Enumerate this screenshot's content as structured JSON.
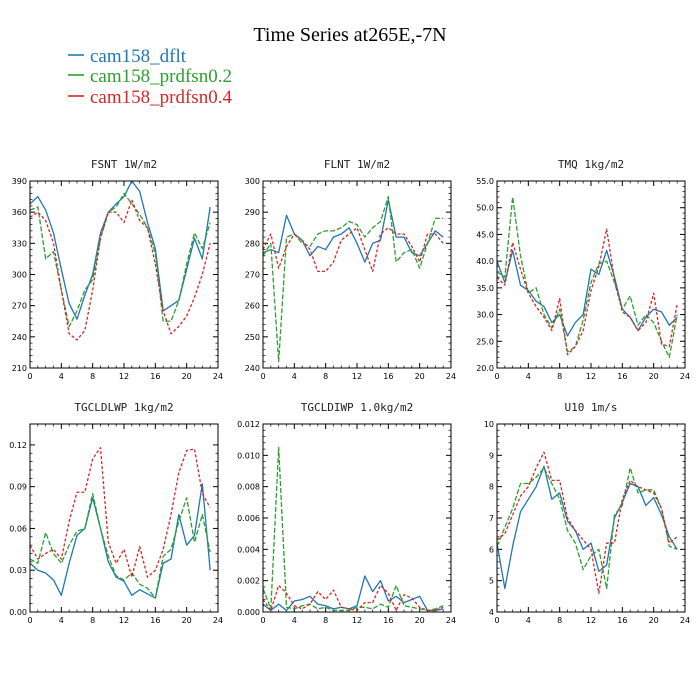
{
  "title": "Time Series at265E,-7N",
  "legend": [
    {
      "label": "cam158_dflt",
      "color": "#1f77b4"
    },
    {
      "label": "cam158_prdfsn0.2",
      "color": "#2ca02c"
    },
    {
      "label": "cam158_prdfsn0.4",
      "color": "#d62728"
    }
  ],
  "chart_data": [
    {
      "type": "line",
      "title": "FSNT  1W/m2",
      "xlim": [
        0,
        24
      ],
      "xticks": [
        "0",
        "4",
        "8",
        "12",
        "16",
        "20",
        "24"
      ],
      "ylim": [
        210,
        390
      ],
      "yticks": [
        "210",
        "240",
        "270",
        "300",
        "330",
        "360",
        "390"
      ],
      "x": [
        0,
        1,
        2,
        3,
        4,
        5,
        6,
        7,
        8,
        9,
        10,
        11,
        12,
        13,
        14,
        15,
        16,
        17,
        18,
        19,
        20,
        21,
        22,
        23
      ],
      "series": [
        {
          "name": "cam158_dflt",
          "color": "#1f77b4",
          "dash": "",
          "values": [
            368,
            375,
            362,
            340,
            305,
            272,
            257,
            280,
            300,
            340,
            360,
            368,
            375,
            390,
            380,
            350,
            325,
            265,
            270,
            275,
            305,
            335,
            315,
            365
          ]
        },
        {
          "name": "cam158_prdfsn0.2",
          "color": "#2ca02c",
          "dash": "5,2",
          "values": [
            362,
            365,
            315,
            322,
            285,
            250,
            265,
            285,
            295,
            335,
            360,
            365,
            378,
            368,
            358,
            345,
            320,
            255,
            255,
            275,
            310,
            340,
            325,
            350
          ]
        },
        {
          "name": "cam158_prdfsn0.4",
          "color": "#d62728",
          "dash": "3,2",
          "values": [
            355,
            360,
            352,
            330,
            285,
            243,
            237,
            246,
            285,
            335,
            360,
            360,
            350,
            372,
            352,
            345,
            310,
            265,
            243,
            250,
            260,
            278,
            300,
            330
          ]
        }
      ]
    },
    {
      "type": "line",
      "title": "FLNT  1W/m2",
      "xlim": [
        0,
        24
      ],
      "xticks": [
        "0",
        "4",
        "8",
        "12",
        "16",
        "20",
        "24"
      ],
      "ylim": [
        240,
        300
      ],
      "yticks": [
        "240",
        "250",
        "260",
        "270",
        "280",
        "290",
        "300"
      ],
      "x": [
        0,
        1,
        2,
        3,
        4,
        5,
        6,
        7,
        8,
        9,
        10,
        11,
        12,
        13,
        14,
        15,
        16,
        17,
        18,
        19,
        20,
        21,
        22,
        23
      ],
      "series": [
        {
          "name": "cam158_dflt",
          "color": "#1f77b4",
          "dash": "",
          "values": [
            277,
            278,
            277,
            289,
            283,
            281,
            276,
            279,
            278,
            282,
            283,
            285,
            280,
            274,
            280,
            281,
            294,
            282,
            282,
            277,
            276,
            280,
            284,
            282
          ]
        },
        {
          "name": "cam158_prdfsn0.2",
          "color": "#2ca02c",
          "dash": "5,2",
          "values": [
            276,
            280,
            242,
            282,
            283,
            280,
            279,
            283,
            284,
            284,
            285,
            287,
            286,
            282,
            285,
            287,
            295,
            274,
            277,
            278,
            272,
            280,
            288,
            288
          ]
        },
        {
          "name": "cam158_prdfsn0.4",
          "color": "#d62728",
          "dash": "3,2",
          "values": [
            278,
            283,
            272,
            279,
            283,
            281,
            278,
            271,
            271,
            274,
            281,
            283,
            285,
            278,
            271,
            283,
            285,
            283,
            283,
            279,
            274,
            283,
            283,
            280
          ]
        }
      ]
    },
    {
      "type": "line",
      "title": "TMQ  1kg/m2",
      "xlim": [
        0,
        24
      ],
      "xticks": [
        "0",
        "4",
        "8",
        "12",
        "16",
        "20",
        "24"
      ],
      "ylim": [
        20,
        55
      ],
      "yticks": [
        "20.0",
        "25.0",
        "30.0",
        "35.0",
        "40.0",
        "45.0",
        "50.0",
        "55.0"
      ],
      "x": [
        0,
        1,
        2,
        3,
        4,
        5,
        6,
        7,
        8,
        9,
        10,
        11,
        12,
        13,
        14,
        15,
        16,
        17,
        18,
        19,
        20,
        21,
        22,
        23
      ],
      "series": [
        {
          "name": "cam158_dflt",
          "color": "#1f77b4",
          "dash": "",
          "values": [
            40,
            36,
            42,
            35.5,
            34.5,
            32.5,
            31.5,
            28.5,
            30,
            26,
            28.5,
            30,
            38.5,
            37.5,
            42,
            37,
            31,
            29.5,
            27,
            29.5,
            31,
            30.5,
            28,
            29.5
          ]
        },
        {
          "name": "cam158_prdfsn0.2",
          "color": "#2ca02c",
          "dash": "5,2",
          "values": [
            38,
            37,
            52,
            41,
            34,
            35,
            30,
            27.5,
            31,
            23,
            24,
            29,
            36,
            39.5,
            40,
            36,
            31,
            33.5,
            28,
            30,
            28.5,
            25,
            22,
            30
          ]
        },
        {
          "name": "cam158_prdfsn0.4",
          "color": "#d62728",
          "dash": "3,2",
          "values": [
            37,
            35.5,
            43.5,
            38.5,
            34,
            31.5,
            29.5,
            27,
            33,
            22.5,
            24,
            27,
            34.5,
            39,
            46,
            36.5,
            30.5,
            29.5,
            27,
            28.5,
            34,
            24.5,
            24,
            32
          ]
        }
      ]
    },
    {
      "type": "line",
      "title": "TGCLDLWP  1kg/m2",
      "xlim": [
        0,
        24
      ],
      "xticks": [
        "0",
        "4",
        "8",
        "12",
        "16",
        "20",
        "24"
      ],
      "ylim": [
        0,
        0.135
      ],
      "yticks": [
        "0.00",
        "0.03",
        "0.06",
        "0.09",
        "0.12"
      ],
      "x": [
        0,
        1,
        2,
        3,
        4,
        5,
        6,
        7,
        8,
        9,
        10,
        11,
        12,
        13,
        14,
        15,
        16,
        17,
        18,
        19,
        20,
        21,
        22,
        23
      ],
      "series": [
        {
          "name": "cam158_dflt",
          "color": "#1f77b4",
          "dash": "",
          "values": [
            0.035,
            0.03,
            0.028,
            0.023,
            0.012,
            0.035,
            0.055,
            0.06,
            0.082,
            0.06,
            0.036,
            0.025,
            0.022,
            0.012,
            0.016,
            0.013,
            0.01,
            0.035,
            0.038,
            0.07,
            0.048,
            0.055,
            0.092,
            0.03
          ]
        },
        {
          "name": "cam158_prdfsn0.2",
          "color": "#2ca02c",
          "dash": "5,2",
          "values": [
            0.038,
            0.035,
            0.057,
            0.042,
            0.035,
            0.048,
            0.058,
            0.06,
            0.085,
            0.06,
            0.04,
            0.026,
            0.023,
            0.028,
            0.02,
            0.017,
            0.01,
            0.04,
            0.045,
            0.065,
            0.082,
            0.05,
            0.07,
            0.043
          ]
        },
        {
          "name": "cam158_prdfsn0.4",
          "color": "#d62728",
          "dash": "3,2",
          "values": [
            0.048,
            0.038,
            0.042,
            0.045,
            0.038,
            0.065,
            0.086,
            0.086,
            0.11,
            0.118,
            0.05,
            0.035,
            0.045,
            0.025,
            0.047,
            0.025,
            0.03,
            0.045,
            0.07,
            0.1,
            0.116,
            0.117,
            0.085,
            0.075
          ]
        }
      ]
    },
    {
      "type": "line",
      "title": "TGCLDIWP  1.0kg/m2",
      "xlim": [
        0,
        24
      ],
      "xticks": [
        "0",
        "4",
        "8",
        "12",
        "16",
        "20",
        "24"
      ],
      "ylim": [
        0,
        0.012
      ],
      "yticks": [
        "0.000",
        "0.002",
        "0.004",
        "0.006",
        "0.008",
        "0.010",
        "0.012"
      ],
      "x": [
        0,
        1,
        2,
        3,
        4,
        5,
        6,
        7,
        8,
        9,
        10,
        11,
        12,
        13,
        14,
        15,
        16,
        17,
        18,
        19,
        20,
        21,
        22,
        23
      ],
      "series": [
        {
          "name": "cam158_dflt",
          "color": "#1f77b4",
          "dash": "",
          "values": [
            0.0005,
            0.0001,
            0.0005,
            0.0001,
            0.0007,
            0.0008,
            0.001,
            0.0005,
            0.0004,
            0.0002,
            0.0003,
            0.0002,
            0.0004,
            0.0023,
            0.0013,
            0.002,
            0.0007,
            0.001,
            0.0006,
            0.0008,
            0.001,
            0.0001,
            0.0001,
            0.0002
          ]
        },
        {
          "name": "cam158_prdfsn0.2",
          "color": "#2ca02c",
          "dash": "5,2",
          "values": [
            0.0015,
            0.0002,
            0.0105,
            0.0003,
            0.0002,
            0.0004,
            0.0005,
            0.0002,
            0.0003,
            0.0001,
            0.0001,
            0.0001,
            0.0003,
            0.0003,
            0.0002,
            0.0005,
            0.0003,
            0.0017,
            0.0004,
            0.0003,
            0.0002,
            0.0001,
            0.0002,
            0.0004
          ]
        },
        {
          "name": "cam158_prdfsn0.4",
          "color": "#d62728",
          "dash": "3,2",
          "values": [
            0.0008,
            0.0001,
            0.0017,
            0.0012,
            0.0004,
            0.0002,
            0.0005,
            0.0013,
            0.0008,
            0.0014,
            0.0003,
            0.0002,
            0.0001,
            0.0006,
            0.0006,
            0.0017,
            0.0012,
            0.0001,
            0.0011,
            0.0009,
            0.0003,
            0.0001,
            0.0001,
            0.0003
          ]
        }
      ]
    },
    {
      "type": "line",
      "title": "U10  1m/s",
      "xlim": [
        0,
        24
      ],
      "xticks": [
        "0",
        "4",
        "8",
        "12",
        "16",
        "20",
        "24"
      ],
      "ylim": [
        4,
        10
      ],
      "yticks": [
        "4",
        "5",
        "6",
        "7",
        "8",
        "9",
        "10"
      ],
      "x": [
        0,
        1,
        2,
        3,
        4,
        5,
        6,
        7,
        8,
        9,
        10,
        11,
        12,
        13,
        14,
        15,
        16,
        17,
        18,
        19,
        20,
        21,
        22,
        23
      ],
      "series": [
        {
          "name": "cam158_dflt",
          "color": "#1f77b4",
          "dash": "",
          "values": [
            6.2,
            4.75,
            6.1,
            7.2,
            7.6,
            8.0,
            8.65,
            7.6,
            7.8,
            6.9,
            6.6,
            6.0,
            6.2,
            5.3,
            5.5,
            7.0,
            7.5,
            8.1,
            8.0,
            7.4,
            7.65,
            7.1,
            6.4,
            6.0
          ]
        },
        {
          "name": "cam158_prdfsn0.2",
          "color": "#2ca02c",
          "dash": "5,2",
          "values": [
            6.1,
            6.7,
            7.3,
            8.1,
            8.1,
            8.3,
            8.6,
            8.1,
            7.6,
            6.6,
            6.2,
            5.35,
            5.8,
            6.0,
            4.75,
            7.1,
            7.4,
            8.6,
            7.8,
            7.9,
            7.9,
            7.3,
            6.1,
            6.0
          ]
        },
        {
          "name": "cam158_prdfsn0.4",
          "color": "#d62728",
          "dash": "3,2",
          "values": [
            6.3,
            6.5,
            7.1,
            7.7,
            8.0,
            8.6,
            9.1,
            8.2,
            8.2,
            7.0,
            6.6,
            6.3,
            6.0,
            4.6,
            6.2,
            6.2,
            7.6,
            8.2,
            8.0,
            7.9,
            7.8,
            7.3,
            6.2,
            6.4
          ]
        }
      ]
    }
  ]
}
